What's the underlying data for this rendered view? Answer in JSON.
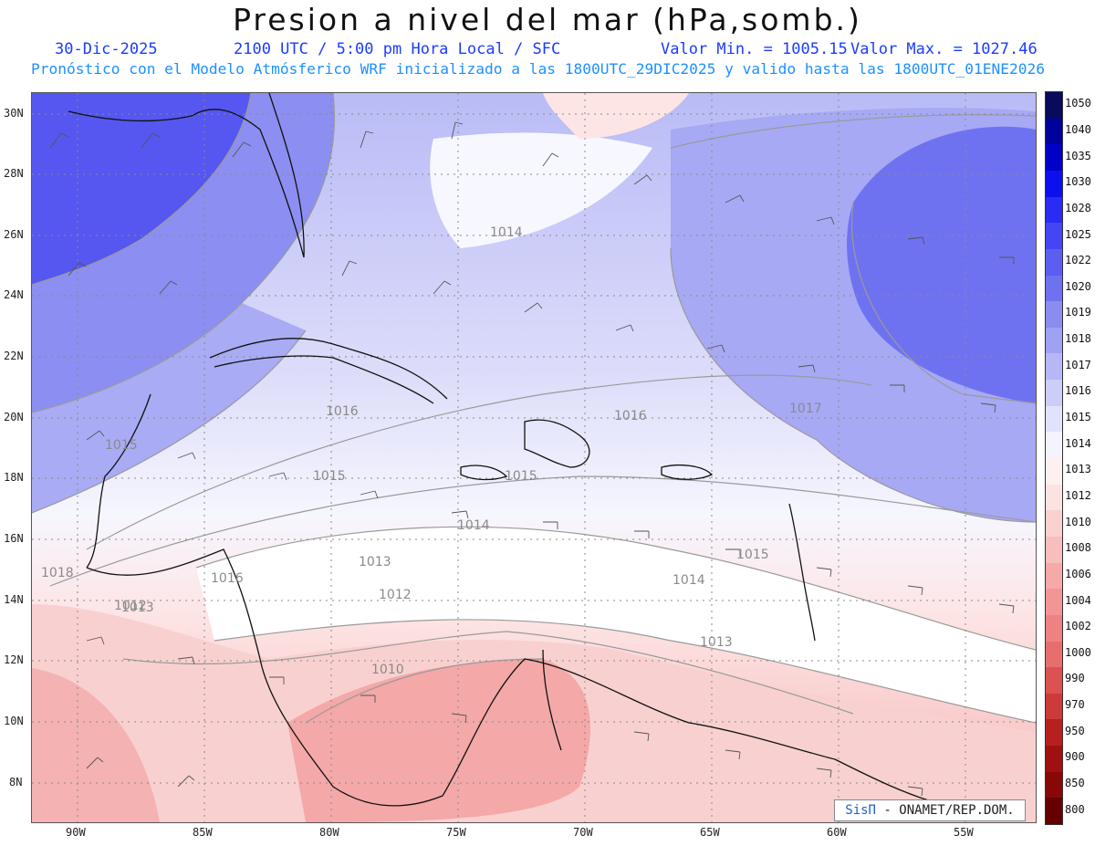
{
  "header": {
    "title": "Presion a nivel del mar (hPa,somb.)",
    "date": "30-Dic-2025",
    "time_label": "2100 UTC / 5:00 pm Hora Local / SFC",
    "min_label": "Valor Min. = 1005.15",
    "max_label": "Valor Max. = 1027.46",
    "model_info": "Pronóstico con el Modelo Atmósferico WRF inicializado a las 1800UTC_29DIC2025 y valido hasta las  1800UTC_01ENE2026"
  },
  "axes": {
    "lat_labels": [
      "30N",
      "28N",
      "26N",
      "24N",
      "22N",
      "20N",
      "18N",
      "16N",
      "14N",
      "12N",
      "10N",
      "8N"
    ],
    "lon_labels": [
      "90W",
      "85W",
      "80W",
      "75W",
      "70W",
      "65W",
      "60W",
      "55W"
    ]
  },
  "contour_labels": [
    "1014",
    "1016",
    "1015",
    "1015",
    "1014",
    "1013",
    "1012",
    "1010",
    "1016",
    "1017",
    "1015",
    "1014",
    "1013",
    "1013",
    "1018",
    "1012",
    "1015",
    "1016"
  ],
  "colorbar": {
    "levels": [
      "1050",
      "1040",
      "1035",
      "1030",
      "1028",
      "1025",
      "1022",
      "1020",
      "1019",
      "1018",
      "1017",
      "1016",
      "1015",
      "1014",
      "1013",
      "1012",
      "1010",
      "1008",
      "1006",
      "1004",
      "1002",
      "1000",
      "990",
      "970",
      "950",
      "900",
      "850",
      "800"
    ],
    "colors": [
      "#0a0a5c",
      "#00009a",
      "#0000c8",
      "#0d10ee",
      "#2a2cf5",
      "#4446f3",
      "#5c5ef2",
      "#6f72f0",
      "#8a8cf0",
      "#9fa1f3",
      "#b5b7f6",
      "#cccdf8",
      "#e1e2fb",
      "#f4f4fe",
      "#fff0f0",
      "#fde2e2",
      "#fbd0d0",
      "#f8bdbd",
      "#f5a9a9",
      "#f29595",
      "#ee8282",
      "#e86e6e",
      "#dc5252",
      "#cc3a3a",
      "#b82020",
      "#a01010",
      "#880808",
      "#660000"
    ]
  },
  "credit": {
    "logo": "SisΠ",
    "text": "- ONAMET/REP.DOM."
  }
}
